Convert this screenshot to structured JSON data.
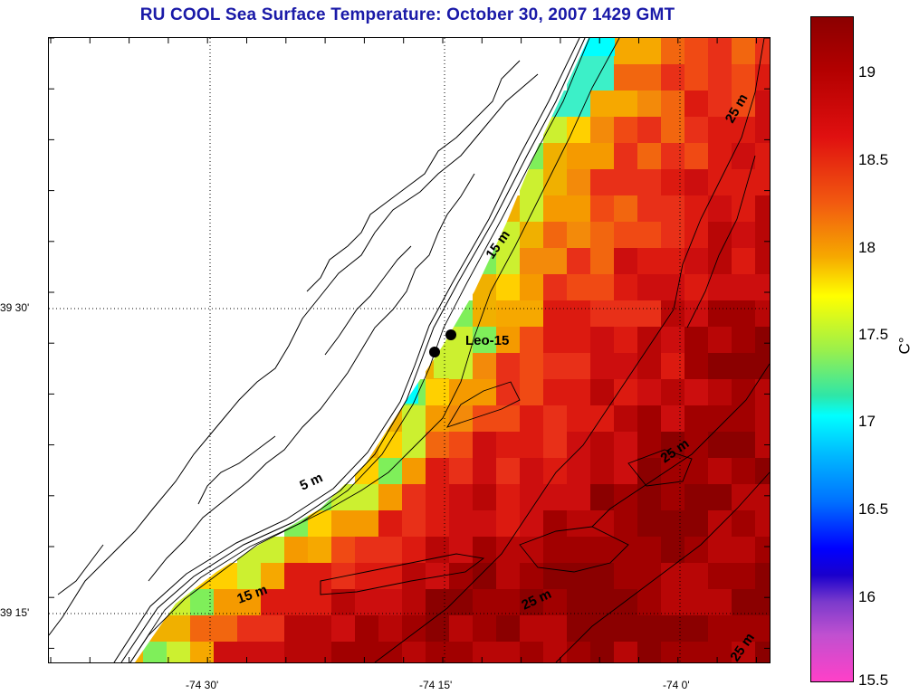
{
  "title": "RU COOL  Sea Surface Temperature:  October 30, 2007 1429 GMT",
  "map": {
    "lat_labels": [
      "39 30'",
      "39 15'"
    ],
    "lon_labels": [
      "-74 30'",
      "-74 15'",
      "-74 0'"
    ],
    "station": {
      "name": "Leo-15"
    },
    "contour_labels": [
      "5 m",
      "15 m",
      "15 m",
      "25 m",
      "25 m",
      "25 m",
      "25 m"
    ]
  },
  "colorbar": {
    "min": 15.5,
    "max": 19.3,
    "tick_labels": [
      "19",
      "18.5",
      "18",
      "17.5",
      "17",
      "16.5",
      "16",
      "15.5"
    ],
    "unit_label": "C°"
  }
}
